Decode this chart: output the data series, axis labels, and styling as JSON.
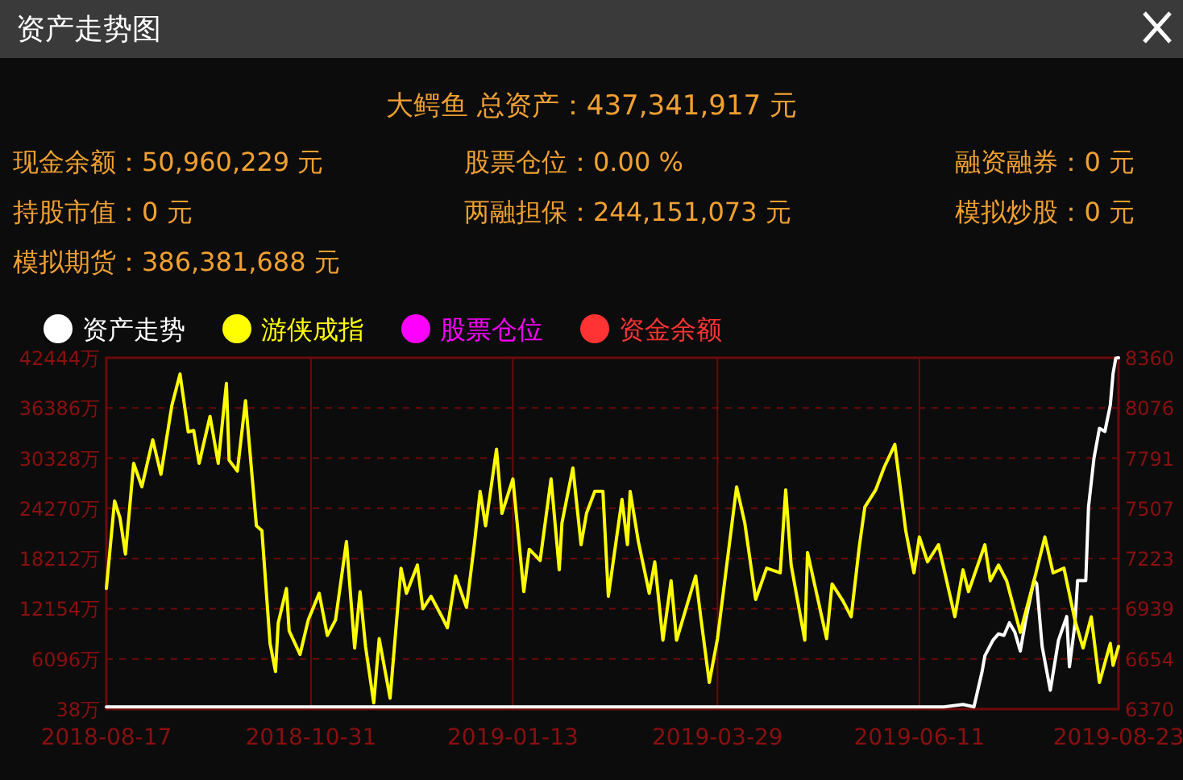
{
  "chart_data": {
    "type": "line",
    "title": "资产走势图",
    "subtitle": "大鳄鱼 总资产：437,341,917 元",
    "annotations": [
      "现金余额：50,960,229 元",
      "股票仓位：0.00 %",
      "融资融券：0 元",
      "持股市值：0 元",
      "两融担保：244,151,073 元",
      "模拟炒股：0 元",
      "模拟期货：386,381,688 元"
    ],
    "series": [
      {
        "name": "资产走势",
        "color": "#ffffff",
        "axis": "y",
        "x": [
          "2018-08-17",
          "2019-06-20",
          "2019-06-27",
          "2019-07-01",
          "2019-07-04",
          "2019-07-05",
          "2019-07-08",
          "2019-07-10",
          "2019-07-12",
          "2019-07-14",
          "2019-07-16",
          "2019-07-18",
          "2019-07-20",
          "2019-07-23",
          "2019-07-24",
          "2019-07-26",
          "2019-07-29",
          "2019-08-01",
          "2019-08-04",
          "2019-08-05",
          "2019-08-07",
          "2019-08-08",
          "2019-08-11",
          "2019-08-12",
          "2019-08-14",
          "2019-08-16",
          "2019-08-18",
          "2019-08-20",
          "2019-08-21",
          "2019-08-22",
          "2019-08-23"
        ],
        "values": [
          300,
          300,
          600,
          300,
          4581,
          6474,
          8367,
          9124,
          8935,
          10450,
          9314,
          7042,
          10828,
          15561,
          15182,
          7610,
          2310,
          8367,
          11207,
          5149,
          10260,
          15561,
          15561,
          24458,
          30326,
          33923,
          33544,
          36762,
          40548,
          42400,
          42444
        ]
      },
      {
        "name": "游侠成指",
        "color": "#ffff00",
        "axis": "y2",
        "x": [
          "2018-08-17",
          "2018-08-20",
          "2018-08-22",
          "2018-08-24",
          "2018-08-27",
          "2018-08-30",
          "2018-09-03",
          "2018-09-06",
          "2018-09-10",
          "2018-09-13",
          "2018-09-16",
          "2018-09-18",
          "2018-09-20",
          "2018-09-24",
          "2018-09-27",
          "2018-09-30",
          "2018-10-01",
          "2018-10-04",
          "2018-10-07",
          "2018-10-11",
          "2018-10-13",
          "2018-10-16",
          "2018-10-18",
          "2018-10-19",
          "2018-10-22",
          "2018-10-23",
          "2018-10-27",
          "2018-10-30",
          "2018-11-03",
          "2018-11-06",
          "2018-11-09",
          "2018-11-13",
          "2018-11-16",
          "2018-11-18",
          "2018-11-20",
          "2018-11-23",
          "2018-11-25",
          "2018-11-29",
          "2018-12-03",
          "2018-12-05",
          "2018-12-09",
          "2018-12-11",
          "2018-12-14",
          "2018-12-18",
          "2018-12-20",
          "2018-12-23",
          "2018-12-27",
          "2018-12-30",
          "2019-01-01",
          "2019-01-03",
          "2019-01-07",
          "2019-01-09",
          "2019-01-13",
          "2019-01-17",
          "2019-01-19",
          "2019-01-23",
          "2019-01-27",
          "2019-01-30",
          "2019-01-31",
          "2019-02-04",
          "2019-02-07",
          "2019-02-09",
          "2019-02-12",
          "2019-02-15",
          "2019-02-17",
          "2019-02-22",
          "2019-02-24",
          "2019-02-25",
          "2019-02-28",
          "2019-03-04",
          "2019-03-06",
          "2019-03-09",
          "2019-03-12",
          "2019-03-14",
          "2019-03-21",
          "2019-03-23",
          "2019-03-26",
          "2019-03-29",
          "2019-04-05",
          "2019-04-08",
          "2019-04-12",
          "2019-04-16",
          "2019-04-21",
          "2019-04-23",
          "2019-04-25",
          "2019-04-30",
          "2019-05-01",
          "2019-05-08",
          "2019-05-10",
          "2019-05-14",
          "2019-05-17",
          "2019-05-20",
          "2019-05-22",
          "2019-05-26",
          "2019-05-29",
          "2019-06-02",
          "2019-06-06",
          "2019-06-09",
          "2019-06-11",
          "2019-06-14",
          "2019-06-18",
          "2019-06-24",
          "2019-06-27",
          "2019-06-29",
          "2019-07-05",
          "2019-07-07",
          "2019-07-10",
          "2019-07-13",
          "2019-07-18",
          "2019-07-23",
          "2019-07-27",
          "2019-07-30",
          "2019-08-03",
          "2019-08-07",
          "2019-08-10",
          "2019-08-13",
          "2019-08-16",
          "2019-08-20",
          "2019-08-21",
          "2019-08-23"
        ],
        "values": [
          7053,
          7549,
          7452,
          7248,
          7762,
          7629,
          7895,
          7700,
          8090,
          8268,
          7940,
          7948,
          7762,
          8028,
          7762,
          8215,
          7780,
          7718,
          8117,
          7408,
          7381,
          6742,
          6583,
          6858,
          7053,
          6813,
          6680,
          6875,
          7026,
          6787,
          6875,
          7319,
          6716,
          7035,
          6725,
          6405,
          6769,
          6432,
          7168,
          7026,
          7186,
          6938,
          7009,
          6893,
          6831,
          7124,
          6946,
          7319,
          7603,
          7408,
          7842,
          7479,
          7674,
          7035,
          7275,
          7212,
          7674,
          7159,
          7425,
          7736,
          7301,
          7479,
          7603,
          7603,
          7009,
          7558,
          7301,
          7603,
          7319,
          7026,
          7204,
          6760,
          7097,
          6760,
          7124,
          6875,
          6521,
          6769,
          7629,
          7425,
          6991,
          7168,
          7142,
          7612,
          7186,
          6760,
          7257,
          6769,
          7079,
          6982,
          6893,
          7292,
          7514,
          7612,
          7736,
          7869,
          7381,
          7142,
          7345,
          7204,
          7301,
          6893,
          7159,
          7035,
          7301,
          7097,
          7186,
          7097,
          6805,
          7097,
          7345,
          7142,
          7168,
          6875,
          6716,
          6893,
          6521,
          6742,
          6618,
          6725
        ]
      },
      {
        "name": "股票仓位",
        "color": "#ff00ff",
        "axis": "y",
        "values": [
          null
        ]
      },
      {
        "name": "资金余额",
        "color": "#ff3333",
        "axis": "y",
        "values": [
          null
        ]
      }
    ],
    "xlim": [
      "2018-08-17",
      "2019-08-23"
    ],
    "xticks": [
      "2018-08-17",
      "2018-10-31",
      "2019-01-13",
      "2019-03-29",
      "2019-06-11",
      "2019-08-23"
    ],
    "ylim": [
      38,
      42444
    ],
    "yticks": [
      {
        "value": 38,
        "label": "38万"
      },
      {
        "value": 6096,
        "label": "6096万"
      },
      {
        "value": 12154,
        "label": "12154万"
      },
      {
        "value": 18212,
        "label": "18212万"
      },
      {
        "value": 24270,
        "label": "24270万"
      },
      {
        "value": 30328,
        "label": "30328万"
      },
      {
        "value": 36386,
        "label": "36386万"
      },
      {
        "value": 42444,
        "label": "42444万"
      }
    ],
    "y2lim": [
      6370,
      8360
    ],
    "y2ticks": [
      6370,
      6654,
      6939,
      7223,
      7507,
      7791,
      8076,
      8360
    ],
    "grid": true,
    "legend": "top left",
    "line_style": "solid",
    "marker": "none"
  }
}
